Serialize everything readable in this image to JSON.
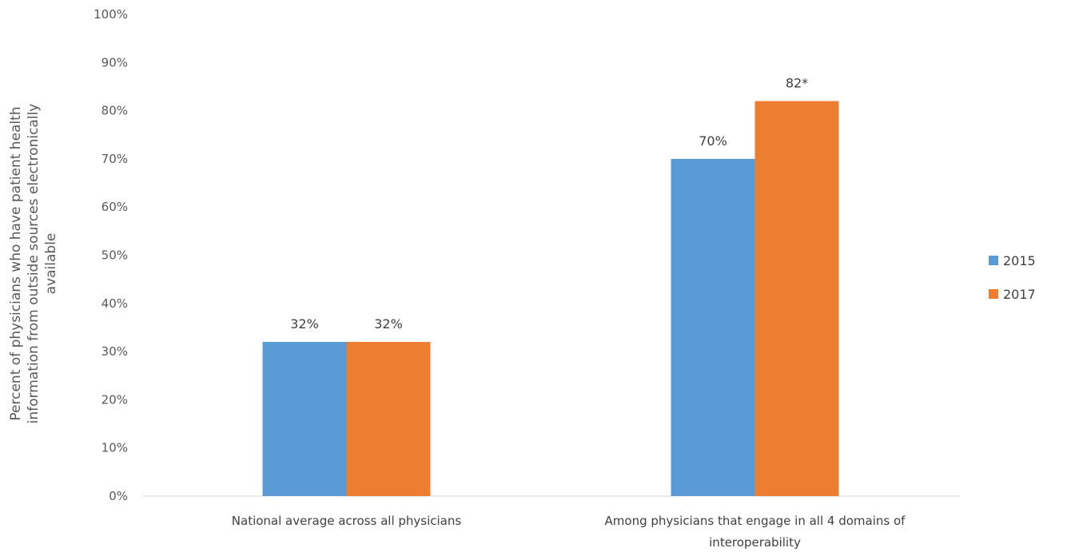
{
  "chart_data": {
    "type": "bar",
    "ylabel_lines": [
      "Percent of physicians who have patient health",
      "information from outside sources electronically",
      "available"
    ],
    "categories": [
      [
        "National average across all physicians"
      ],
      [
        "Among physicians that engage in all 4 domains of",
        "interoperability"
      ]
    ],
    "series": [
      {
        "name": "2015",
        "values": [
          32,
          70
        ],
        "labels": [
          "32%",
          "70%"
        ]
      },
      {
        "name": "2017",
        "values": [
          32,
          82
        ],
        "labels": [
          "32%",
          "82*"
        ]
      }
    ],
    "ylim": [
      0,
      100
    ],
    "yticks": [
      "0%",
      "10%",
      "20%",
      "30%",
      "40%",
      "50%",
      "60%",
      "70%",
      "80%",
      "90%",
      "100%"
    ],
    "grid": false,
    "legend_position": "right"
  },
  "colors": {
    "2015": "#5b9bd5",
    "2017": "#ed7d31",
    "axis": "#d9d9d9"
  }
}
